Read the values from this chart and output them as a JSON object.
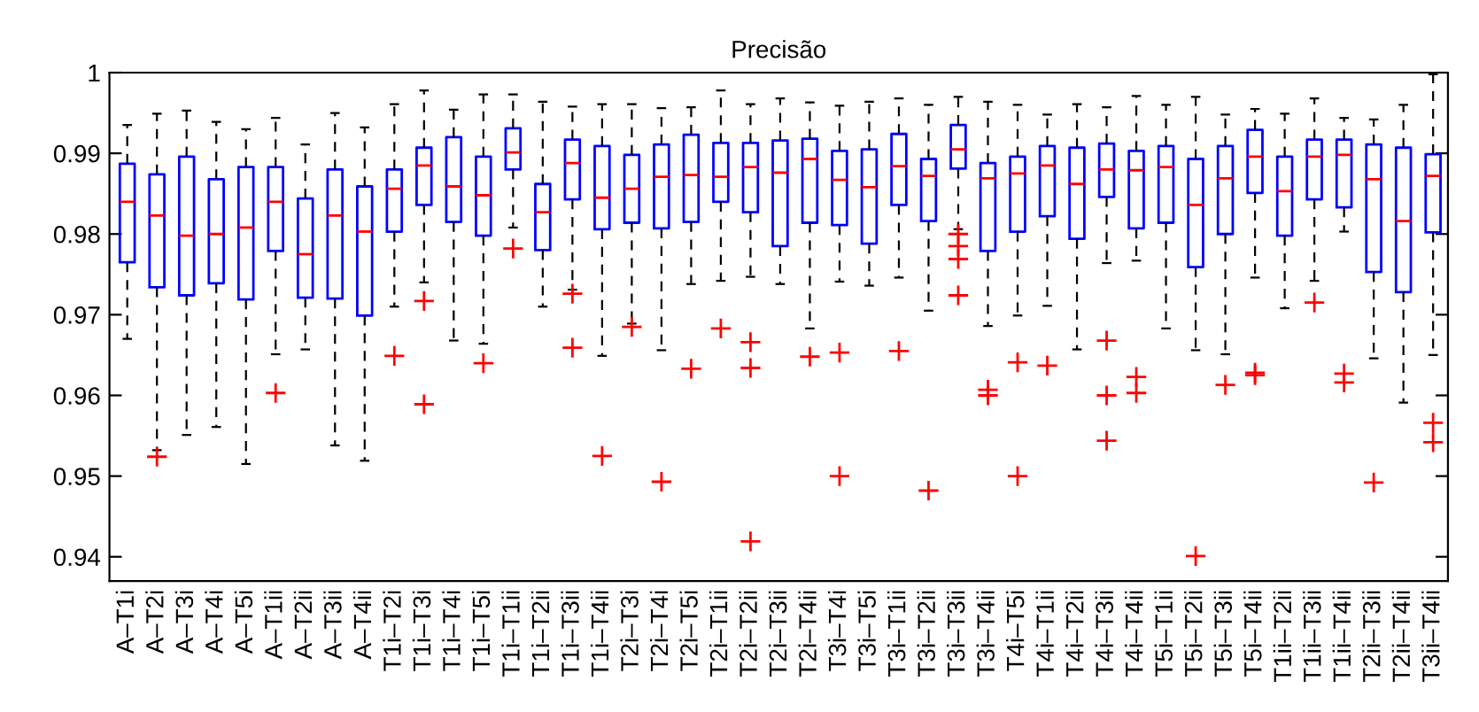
{
  "chart_data": {
    "type": "box",
    "title": "Precisão",
    "categories": [
      "A–T1i",
      "A–T2i",
      "A–T3i",
      "A–T4i",
      "A–T5i",
      "A–T1ii",
      "A–T2ii",
      "A–T3ii",
      "A–T4ii",
      "T1i–T2i",
      "T1i–T3i",
      "T1i–T4i",
      "T1i–T5i",
      "T1i–T1ii",
      "T1i–T2ii",
      "T1i–T3ii",
      "T1i–T4ii",
      "T2i–T3i",
      "T2i–T4i",
      "T2i–T5i",
      "T2i–T1ii",
      "T2i–T2ii",
      "T2i–T3ii",
      "T2i–T4ii",
      "T3i–T4i",
      "T3i–T5i",
      "T3i–T1ii",
      "T3i–T2ii",
      "T3i–T3ii",
      "T3i–T4ii",
      "T4i–T5i",
      "T4i–T1ii",
      "T4i–T2ii",
      "T4i–T3ii",
      "T4i–T4ii",
      "T5i–T1ii",
      "T5i–T2ii",
      "T5i–T3ii",
      "T5i–T4ii",
      "T1ii–T2ii",
      "T1ii–T3ii",
      "T1ii–T4ii",
      "T2ii–T3ii",
      "T2ii–T4ii",
      "T3ii–T4ii"
    ],
    "series": [
      {
        "color": "#0000ff",
        "boxes": [
          {
            "low": 0.967,
            "q1": 0.9765,
            "median": 0.984,
            "q3": 0.9887,
            "high": 0.9935
          },
          {
            "low": 0.9532,
            "q1": 0.9734,
            "median": 0.9823,
            "q3": 0.9874,
            "high": 0.9949,
            "outliers": [
              0.9524
            ]
          },
          {
            "low": 0.9551,
            "q1": 0.9724,
            "median": 0.9798,
            "q3": 0.9896,
            "high": 0.9953
          },
          {
            "low": 0.9561,
            "q1": 0.9739,
            "median": 0.98,
            "q3": 0.9868,
            "high": 0.9939
          },
          {
            "low": 0.9515,
            "q1": 0.9719,
            "median": 0.9808,
            "q3": 0.9883,
            "high": 0.993
          },
          {
            "low": 0.9651,
            "q1": 0.9779,
            "median": 0.984,
            "q3": 0.9883,
            "high": 0.9944,
            "outliers": [
              0.9603
            ]
          },
          {
            "low": 0.9657,
            "q1": 0.9721,
            "median": 0.9775,
            "q3": 0.9844,
            "high": 0.9911
          },
          {
            "low": 0.9538,
            "q1": 0.972,
            "median": 0.9823,
            "q3": 0.988,
            "high": 0.995
          },
          {
            "low": 0.9519,
            "q1": 0.9699,
            "median": 0.9803,
            "q3": 0.9859,
            "high": 0.9932
          },
          {
            "low": 0.971,
            "q1": 0.9803,
            "median": 0.9856,
            "q3": 0.988,
            "high": 0.9961,
            "outliers": [
              0.9649
            ]
          },
          {
            "low": 0.974,
            "q1": 0.9836,
            "median": 0.9885,
            "q3": 0.9907,
            "high": 0.9978,
            "outliers": [
              0.9717,
              0.9589
            ]
          },
          {
            "low": 0.9668,
            "q1": 0.9815,
            "median": 0.9859,
            "q3": 0.992,
            "high": 0.9954
          },
          {
            "low": 0.9664,
            "q1": 0.9798,
            "median": 0.9848,
            "q3": 0.9896,
            "high": 0.9973,
            "outliers": [
              0.964
            ]
          },
          {
            "low": 0.9808,
            "q1": 0.988,
            "median": 0.9901,
            "q3": 0.9931,
            "high": 0.9973,
            "outliers": [
              0.9782
            ]
          },
          {
            "low": 0.971,
            "q1": 0.978,
            "median": 0.9827,
            "q3": 0.9862,
            "high": 0.9964
          },
          {
            "low": 0.9731,
            "q1": 0.9843,
            "median": 0.9888,
            "q3": 0.9917,
            "high": 0.9958,
            "outliers": [
              0.9726,
              0.9659
            ]
          },
          {
            "low": 0.9649,
            "q1": 0.9806,
            "median": 0.9845,
            "q3": 0.9909,
            "high": 0.9961,
            "outliers": [
              0.9525
            ]
          },
          {
            "low": 0.9689,
            "q1": 0.9814,
            "median": 0.9856,
            "q3": 0.9898,
            "high": 0.9961,
            "outliers": [
              0.9685
            ]
          },
          {
            "low": 0.9656,
            "q1": 0.9807,
            "median": 0.9871,
            "q3": 0.9911,
            "high": 0.9956,
            "outliers": [
              0.9493
            ]
          },
          {
            "low": 0.9738,
            "q1": 0.9815,
            "median": 0.9873,
            "q3": 0.9923,
            "high": 0.9957,
            "outliers": [
              0.9633
            ]
          },
          {
            "low": 0.9742,
            "q1": 0.984,
            "median": 0.9871,
            "q3": 0.9913,
            "high": 0.9978,
            "outliers": [
              0.9683
            ]
          },
          {
            "low": 0.9747,
            "q1": 0.9827,
            "median": 0.9883,
            "q3": 0.9913,
            "high": 0.9961,
            "outliers": [
              0.9666,
              0.9634,
              0.9419
            ]
          },
          {
            "low": 0.9738,
            "q1": 0.9785,
            "median": 0.9876,
            "q3": 0.9916,
            "high": 0.9968
          },
          {
            "low": 0.9683,
            "q1": 0.9814,
            "median": 0.9893,
            "q3": 0.9918,
            "high": 0.9963,
            "outliers": [
              0.9648
            ]
          },
          {
            "low": 0.9741,
            "q1": 0.9811,
            "median": 0.9867,
            "q3": 0.9903,
            "high": 0.9959,
            "outliers": [
              0.9653,
              0.95
            ]
          },
          {
            "low": 0.9736,
            "q1": 0.9788,
            "median": 0.9858,
            "q3": 0.9905,
            "high": 0.9964
          },
          {
            "low": 0.9746,
            "q1": 0.9836,
            "median": 0.9884,
            "q3": 0.9924,
            "high": 0.9968,
            "outliers": [
              0.9655
            ]
          },
          {
            "low": 0.9705,
            "q1": 0.9816,
            "median": 0.9872,
            "q3": 0.9893,
            "high": 0.996,
            "outliers": [
              0.9482
            ]
          },
          {
            "low": 0.9806,
            "q1": 0.9881,
            "median": 0.9905,
            "q3": 0.9935,
            "high": 0.997,
            "outliers": [
              0.98,
              0.9785,
              0.9769,
              0.9724
            ]
          },
          {
            "low": 0.9686,
            "q1": 0.9779,
            "median": 0.9869,
            "q3": 0.9888,
            "high": 0.9964,
            "outliers": [
              0.9607,
              0.96
            ]
          },
          {
            "low": 0.9699,
            "q1": 0.9803,
            "median": 0.9875,
            "q3": 0.9896,
            "high": 0.996,
            "outliers": [
              0.9641,
              0.95
            ]
          },
          {
            "low": 0.9711,
            "q1": 0.9822,
            "median": 0.9885,
            "q3": 0.9909,
            "high": 0.9948,
            "outliers": [
              0.9637
            ]
          },
          {
            "low": 0.9657,
            "q1": 0.9794,
            "median": 0.9862,
            "q3": 0.9907,
            "high": 0.9961
          },
          {
            "low": 0.9764,
            "q1": 0.9846,
            "median": 0.988,
            "q3": 0.9912,
            "high": 0.9957,
            "outliers": [
              0.9668,
              0.96,
              0.9544
            ]
          },
          {
            "low": 0.9767,
            "q1": 0.9807,
            "median": 0.9879,
            "q3": 0.9903,
            "high": 0.9971,
            "outliers": [
              0.9623,
              0.9603
            ]
          },
          {
            "low": 0.9683,
            "q1": 0.9814,
            "median": 0.9883,
            "q3": 0.9909,
            "high": 0.996
          },
          {
            "low": 0.9656,
            "q1": 0.9759,
            "median": 0.9836,
            "q3": 0.9893,
            "high": 0.997,
            "outliers": [
              0.9401
            ]
          },
          {
            "low": 0.9651,
            "q1": 0.98,
            "median": 0.9869,
            "q3": 0.9909,
            "high": 0.9948,
            "outliers": [
              0.9613
            ]
          },
          {
            "low": 0.9746,
            "q1": 0.9851,
            "median": 0.9896,
            "q3": 0.9929,
            "high": 0.9955,
            "outliers": [
              0.9628,
              0.9625
            ]
          },
          {
            "low": 0.9708,
            "q1": 0.9798,
            "median": 0.9853,
            "q3": 0.9896,
            "high": 0.9949
          },
          {
            "low": 0.9742,
            "q1": 0.9843,
            "median": 0.9896,
            "q3": 0.9917,
            "high": 0.9968,
            "outliers": [
              0.9715
            ]
          },
          {
            "low": 0.9803,
            "q1": 0.9833,
            "median": 0.9898,
            "q3": 0.9917,
            "high": 0.9944,
            "outliers": [
              0.9627,
              0.9616
            ]
          },
          {
            "low": 0.9646,
            "q1": 0.9753,
            "median": 0.9868,
            "q3": 0.9911,
            "high": 0.9942,
            "outliers": [
              0.9492
            ]
          },
          {
            "low": 0.9591,
            "q1": 0.9728,
            "median": 0.9816,
            "q3": 0.9907,
            "high": 0.996
          },
          {
            "low": 0.965,
            "q1": 0.9802,
            "median": 0.9872,
            "q3": 0.9899,
            "high": 0.9998,
            "outliers": [
              0.9566,
              0.9542
            ]
          }
        ]
      }
    ],
    "ylim": [
      0.937,
      1.0
    ],
    "yticks": [
      0.94,
      0.95,
      0.96,
      0.97,
      0.98,
      0.99,
      1
    ],
    "grid": false,
    "legend": false
  }
}
